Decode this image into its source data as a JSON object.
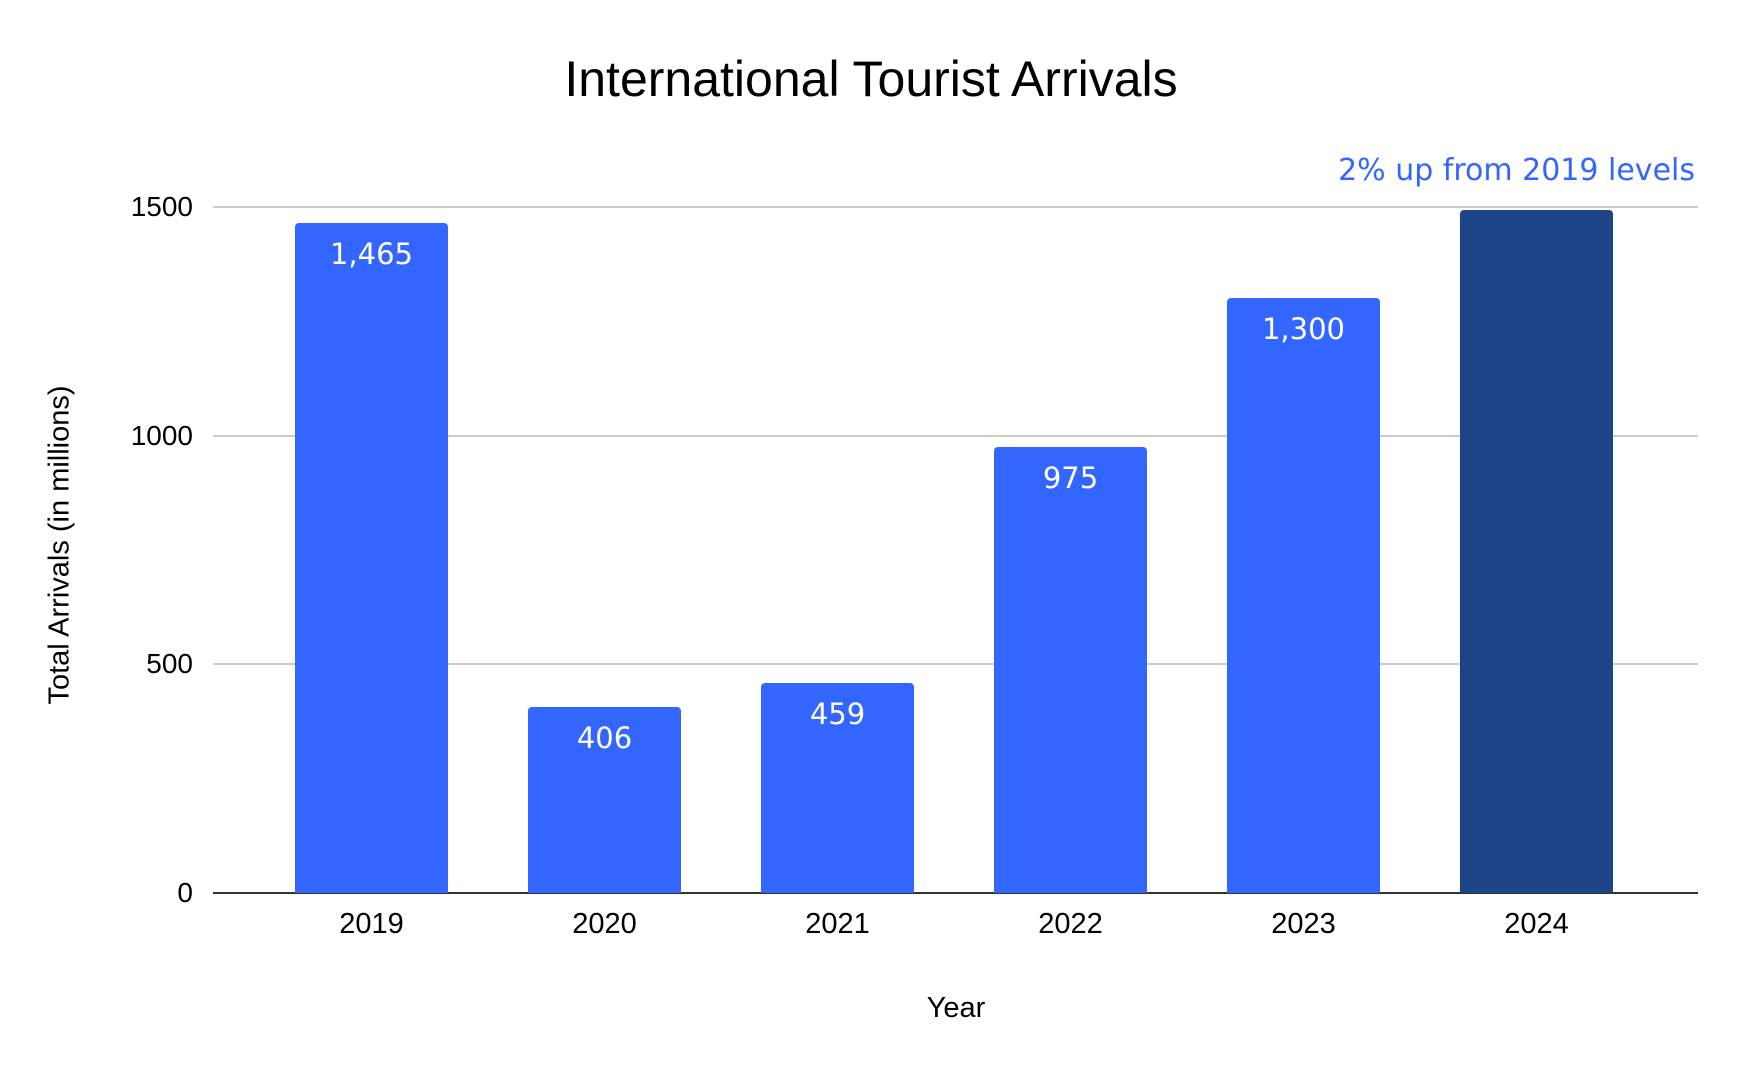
{
  "chart_data": {
    "type": "bar",
    "title": "International Tourist Arrivals",
    "xlabel": "Year",
    "ylabel": "Total Arrivals (in millions)",
    "categories": [
      "2019",
      "2020",
      "2021",
      "2022",
      "2023",
      "2024"
    ],
    "values": [
      1465,
      406,
      459,
      975,
      1300,
      1494
    ],
    "data_labels": [
      "1,465",
      "406",
      "459",
      "975",
      "1,300",
      ""
    ],
    "bar_colors": [
      "#3366ff",
      "#3366ff",
      "#3366ff",
      "#3366ff",
      "#3366ff",
      "#1e4488"
    ],
    "ylim": [
      0,
      1500
    ],
    "yticks": [
      "0",
      "500",
      "1000",
      "1500"
    ],
    "grid": true,
    "legend": null,
    "annotations": [
      {
        "text": "2% up from 2019 levels",
        "target": "2024",
        "color": "#3366ff"
      }
    ]
  },
  "colors": {
    "primary": "#3366ff",
    "highlight": "#1e4488",
    "grid": "#cccccc",
    "axis": "#333333"
  }
}
